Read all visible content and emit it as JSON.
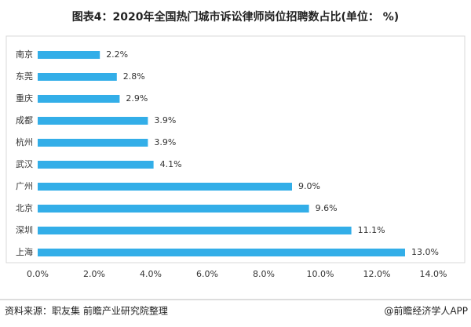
{
  "chart_data": {
    "type": "bar",
    "orientation": "horizontal",
    "title": "图表4：2020年全国热门城市诉讼律师岗位招聘数占比(单位： %)",
    "categories": [
      "南京",
      "东莞",
      "重庆",
      "成都",
      "杭州",
      "武汉",
      "广州",
      "北京",
      "深圳",
      "上海"
    ],
    "values": [
      2.2,
      2.8,
      2.9,
      3.9,
      3.9,
      4.1,
      9.0,
      9.6,
      11.1,
      13.0
    ],
    "value_labels": [
      "2.2%",
      "2.8%",
      "2.9%",
      "3.9%",
      "3.9%",
      "4.1%",
      "9.0%",
      "9.6%",
      "11.1%",
      "13.0%"
    ],
    "color": "#33aee8",
    "xlim": [
      0,
      14
    ],
    "xticks": [
      {
        "value": 0,
        "label": "0.0%"
      },
      {
        "value": 2,
        "label": "2.0%"
      },
      {
        "value": 4,
        "label": "4.0%"
      },
      {
        "value": 6,
        "label": "6.0%"
      },
      {
        "value": 8,
        "label": "8.0%"
      },
      {
        "value": 10,
        "label": "10.0%"
      },
      {
        "value": 12,
        "label": "12.0%"
      },
      {
        "value": 14,
        "label": "14.0%"
      }
    ],
    "grid": false,
    "source": "资料来源：职友集 前瞻产业研究院整理",
    "credit": "@前瞻经济学人APP"
  }
}
